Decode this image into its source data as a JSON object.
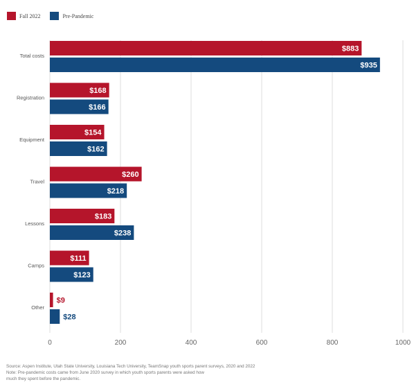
{
  "legend": [
    {
      "label": "Fall 2022",
      "color": "#b5152b"
    },
    {
      "label": "Pre-Pandemic",
      "color": "#144a7e"
    }
  ],
  "chart_data": {
    "type": "bar",
    "orientation": "horizontal",
    "categories": [
      "Total costs",
      "Registration",
      "Equipment",
      "Travel",
      "Lessons",
      "Camps",
      "Other"
    ],
    "series": [
      {
        "name": "Fall 2022",
        "color": "#b5152b",
        "values": [
          883,
          168,
          154,
          260,
          183,
          111,
          9
        ],
        "labels": [
          "$883",
          "$168",
          "$154",
          "$260",
          "$183",
          "$111",
          "$9"
        ]
      },
      {
        "name": "Pre-Pandemic",
        "color": "#144a7e",
        "values": [
          935,
          166,
          162,
          218,
          238,
          123,
          28
        ],
        "labels": [
          "$935",
          "$166",
          "$162",
          "$218",
          "$238",
          "$123",
          "$28"
        ]
      }
    ],
    "xlim": [
      0,
      1000
    ],
    "xticks": [
      0,
      200,
      400,
      600,
      800,
      1000
    ],
    "grid": true,
    "legend_position": "top-left"
  },
  "footnote": {
    "source": "Source: Aspen Institute, Utah State University, Louisiana Tech University, TeamSnap youth sports parent surveys, 2020 and 2022",
    "note_line1": "Note: Pre-pandemic costs came from June 2020 survey in which youth sports parents were asked how",
    "note_line2": "much they spent before the pandemic."
  }
}
